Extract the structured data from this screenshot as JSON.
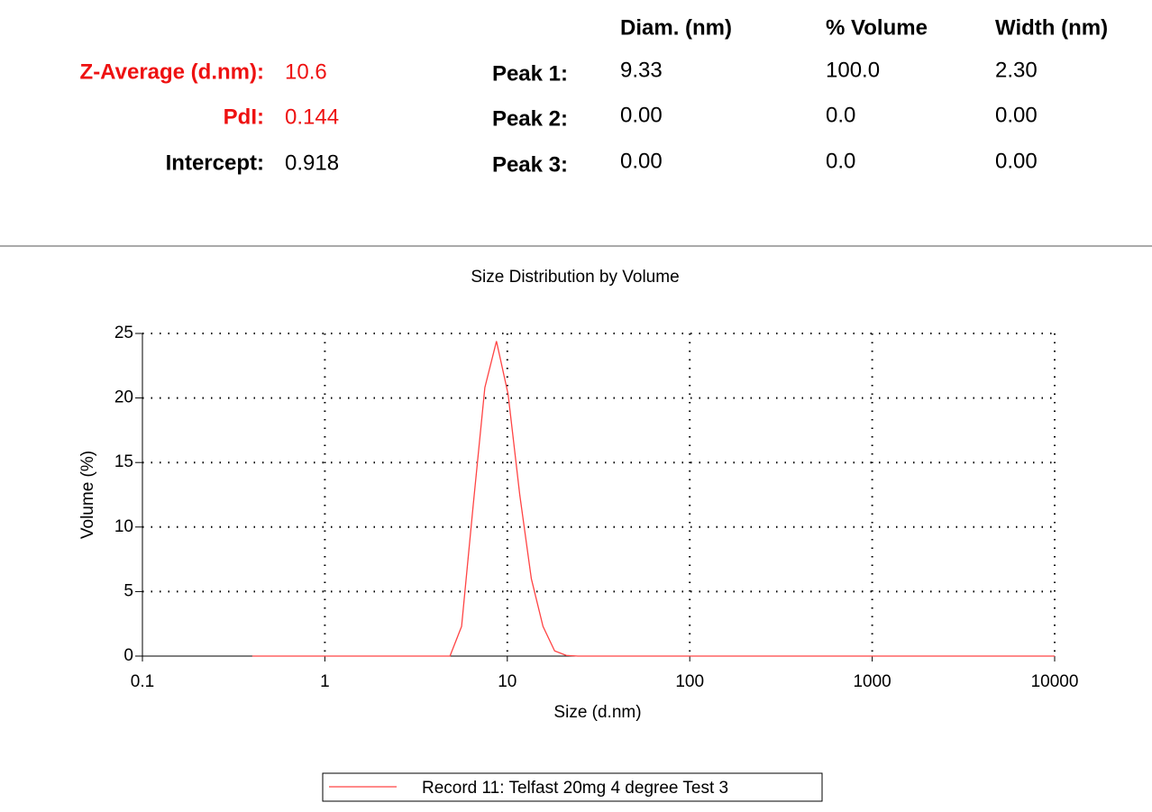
{
  "summary": {
    "left": [
      {
        "label": "Z-Average (d.nm):",
        "value": "10.6",
        "color": "#ee1111"
      },
      {
        "label": "PdI:",
        "value": "0.144",
        "color": "#ee1111"
      },
      {
        "label": "Intercept:",
        "value": "0.918",
        "color": "#000000"
      }
    ],
    "peaks": {
      "headers": [
        "Diam. (nm)",
        "% Volume",
        "Width (nm)"
      ],
      "rows": [
        {
          "label": "Peak 1:",
          "values": [
            "9.33",
            "100.0",
            "2.30"
          ]
        },
        {
          "label": "Peak 2:",
          "values": [
            "0.00",
            "0.0",
            "0.00"
          ]
        },
        {
          "label": "Peak 3:",
          "values": [
            "0.00",
            "0.0",
            "0.00"
          ]
        }
      ]
    }
  },
  "chart_data": {
    "type": "line",
    "title": "Size Distribution by Volume",
    "x_label": "Size (d.nm)",
    "y_label": "Volume (%)",
    "x_scale": "log",
    "grid": true,
    "xlim": [
      0.1,
      10000
    ],
    "xticks": [
      0.1,
      1,
      10,
      100,
      1000,
      10000
    ],
    "ylim": [
      0,
      25
    ],
    "yticks": [
      0,
      5,
      10,
      15,
      20,
      25
    ],
    "x": [
      0.4,
      4.849,
      5.615,
      6.503,
      7.531,
      8.721,
      10.1,
      11.7,
      13.54,
      15.69,
      18.17,
      21.04,
      24.36,
      10000
    ],
    "series": [
      {
        "name": "Record 11: Telfast 20mg 4 degree Test 3",
        "color": "#ff4444",
        "values": [
          0,
          0,
          2.3,
          11.7,
          20.8,
          24.4,
          20.3,
          12.5,
          6.0,
          2.3,
          0.4,
          0.05,
          0,
          0
        ]
      }
    ]
  }
}
